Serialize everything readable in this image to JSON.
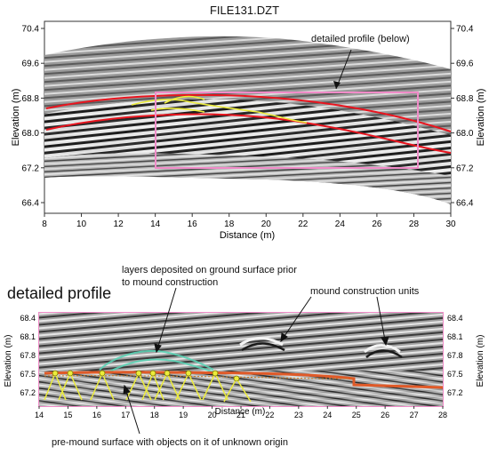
{
  "title": "FILE131.DZT",
  "top_panel": {
    "x_ticks": [
      "8",
      "10",
      "12",
      "14",
      "16",
      "18",
      "20",
      "22",
      "24",
      "26",
      "28",
      "30"
    ],
    "y_ticks": [
      "70.4",
      "69.6",
      "68.8",
      "68.0",
      "67.2",
      "66.4"
    ],
    "xlabel": "Distance (m)",
    "ylabel_left": "Elevation (m)",
    "ylabel_right": "Elevation (m)"
  },
  "bottom_panel": {
    "heading": "detailed profile",
    "x_ticks": [
      "14",
      "15",
      "16",
      "17",
      "18",
      "19",
      "20",
      "21",
      "22",
      "23",
      "24",
      "25",
      "26",
      "27",
      "28"
    ],
    "y_ticks": [
      "68.4",
      "68.1",
      "67.8",
      "67.5",
      "67.2"
    ],
    "xlabel": "Distance (m)",
    "ylabel_left": "Elevation (m)",
    "ylabel_right": "Elevation (m)"
  },
  "annotations": {
    "detailed_profile": "detailed profile (below)",
    "layers": "layers deposited on ground surface prior to mound construction",
    "units": "mound construction units",
    "pre_mound": "pre-mound surface with objects on it of unknown origin"
  },
  "colors": {
    "red_line": "#e8141e",
    "pink_box": "#f08cc8",
    "yellow": "#ecec3c",
    "teal": "#5ad2b4",
    "orange_line": "#e05a28",
    "radar_gray": "#8c8c8c"
  }
}
